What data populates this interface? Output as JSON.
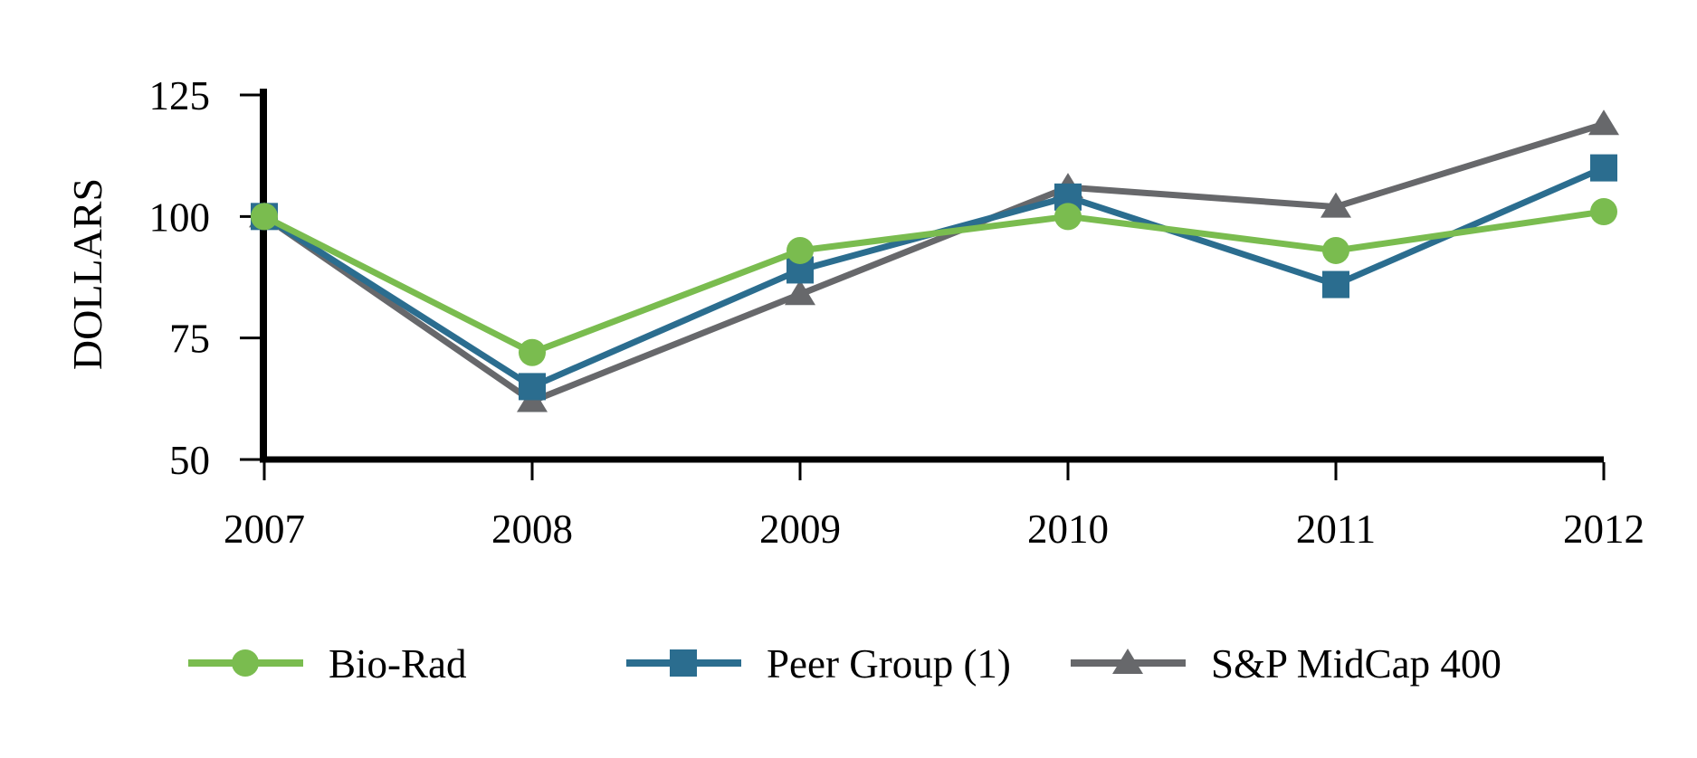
{
  "chart_data": {
    "type": "line",
    "title": "",
    "ylabel": "DOLLARS",
    "xlabel": "",
    "categories": [
      "2007",
      "2008",
      "2009",
      "2010",
      "2011",
      "2012"
    ],
    "ylim": [
      50,
      125
    ],
    "yticks": [
      50,
      75,
      100,
      125
    ],
    "grid": false,
    "legend_position": "bottom",
    "axis_color": "#000000",
    "series": [
      {
        "name": "Bio-Rad",
        "marker": "circle",
        "color": "#7ABC4F",
        "values": [
          100,
          72,
          93,
          100,
          93,
          101
        ]
      },
      {
        "name": "Peer Group (1)",
        "marker": "square",
        "color": "#2B6D8F",
        "values": [
          100,
          65,
          89,
          104,
          86,
          110
        ]
      },
      {
        "name": "S&P MidCap 400",
        "marker": "triangle",
        "color": "#67686B",
        "values": [
          100,
          62,
          84,
          106,
          102,
          119
        ]
      }
    ]
  }
}
